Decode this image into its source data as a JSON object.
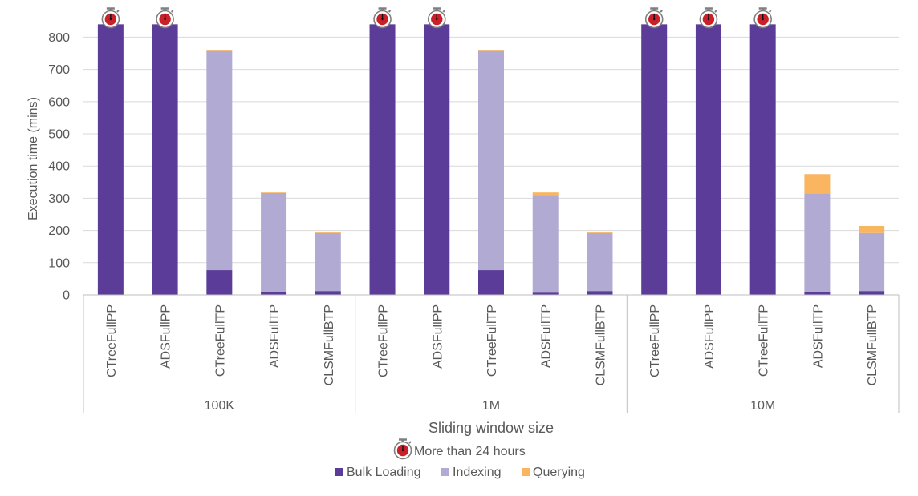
{
  "chart_data": {
    "type": "bar",
    "stacked": true,
    "title": "",
    "xlabel": "Sliding window size",
    "ylabel": "Execution time (mins)",
    "ylim": [
      0,
      800
    ],
    "yticks": [
      0,
      100,
      200,
      300,
      400,
      500,
      600,
      700,
      800
    ],
    "groups": [
      "100K",
      "1M",
      "10M"
    ],
    "categories": [
      "CTreeFullPP",
      "ADSFullPP",
      "CTreeFullTP",
      "ADSFullTP",
      "CLSMFullBTP",
      "CTreeFullPP",
      "ADSFullPP",
      "CTreeFullTP",
      "ADSFullTP",
      "CLSMFullBTP",
      "CTreeFullPP",
      "ADSFullPP",
      "CTreeFullTP",
      "ADSFullTP",
      "CLSMFullBTP"
    ],
    "group_of_category": [
      0,
      0,
      0,
      0,
      0,
      1,
      1,
      1,
      1,
      1,
      2,
      2,
      2,
      2,
      2
    ],
    "series": [
      {
        "name": "Bulk Loading",
        "color": "#5c3c99",
        "values": [
          840,
          840,
          77,
          8,
          12,
          840,
          840,
          77,
          7,
          12,
          840,
          840,
          840,
          8,
          12
        ]
      },
      {
        "name": "Indexing",
        "color": "#b1abd3",
        "values": [
          0,
          0,
          680,
          308,
          180,
          0,
          0,
          680,
          303,
          180,
          0,
          0,
          0,
          307,
          180
        ]
      },
      {
        "name": "Querying",
        "color": "#f9b55f",
        "values": [
          0,
          0,
          3,
          2,
          2,
          0,
          0,
          3,
          8,
          4,
          0,
          0,
          0,
          60,
          22
        ]
      }
    ],
    "timeout_markers": [
      true,
      true,
      false,
      false,
      false,
      true,
      true,
      false,
      false,
      false,
      true,
      true,
      true,
      false,
      false
    ],
    "timeout_label": "More than 24 hours",
    "legend_position": "bottom"
  }
}
